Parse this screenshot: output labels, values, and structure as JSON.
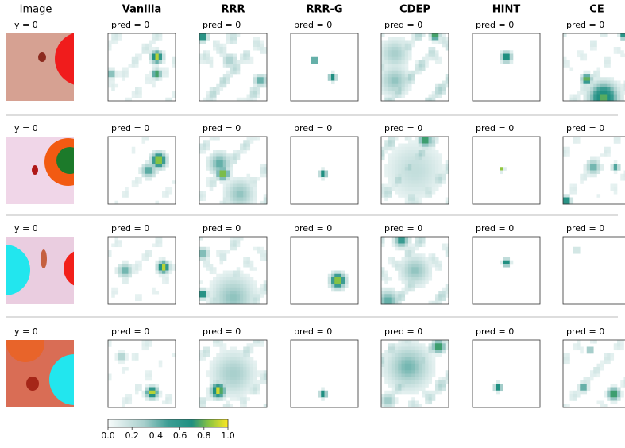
{
  "columns": [
    "Image",
    "Vanilla",
    "RRR",
    "RRR-G",
    "CDEP",
    "HINT",
    "CE"
  ],
  "rows": [
    {
      "label": "y = 0",
      "preds": [
        "pred = 0",
        "pred = 0",
        "pred = 0",
        "pred = 0",
        "pred = 0",
        "pred = 0"
      ]
    },
    {
      "label": "y = 0",
      "preds": [
        "pred = 0",
        "pred = 0",
        "pred = 0",
        "pred = 0",
        "pred = 0",
        "pred = 0"
      ]
    },
    {
      "label": "y = 0",
      "preds": [
        "pred = 0",
        "pred = 0",
        "pred = 0",
        "pred = 0",
        "pred = 0",
        "pred = 0"
      ]
    },
    {
      "label": "y = 0",
      "preds": [
        "pred = 0",
        "pred = 0",
        "pred = 0",
        "pred = 0",
        "pred = 0",
        "pred = 0"
      ]
    }
  ],
  "colorbar": {
    "ticks": [
      "0.0",
      "0.2",
      "0.4",
      "0.6",
      "0.8",
      "1.0"
    ]
  }
}
